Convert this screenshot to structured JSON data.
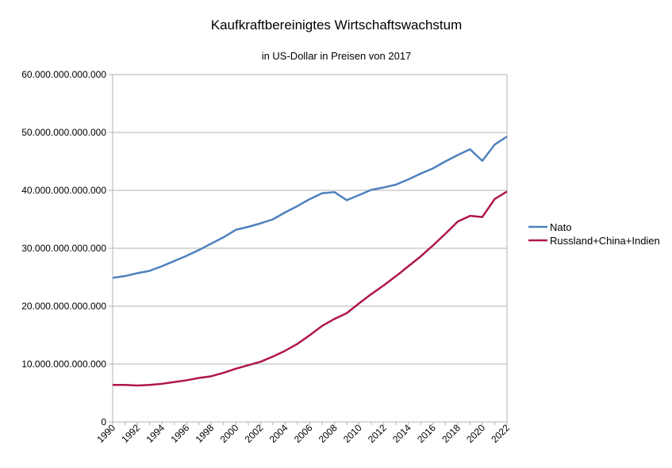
{
  "chart_data": {
    "type": "line",
    "title": "Kaufkraftbereinigtes Wirtschaftswachstum",
    "subtitle": "in US-Dollar in Preisen von 2017",
    "xlabel": "",
    "ylabel": "",
    "xlim": [
      1990,
      2022
    ],
    "ylim": [
      0,
      60000000000000
    ],
    "grid": "horizontal",
    "legend_position": "right",
    "x_tick_labels": [
      "1990",
      "1992",
      "1994",
      "1996",
      "1998",
      "2000",
      "2002",
      "2004",
      "2006",
      "2008",
      "2010",
      "2012",
      "2014",
      "2016",
      "2018",
      "2020",
      "2022"
    ],
    "y_tick_labels": [
      "0",
      "10.000.000.000.000",
      "20.000.000.000.000",
      "30.000.000.000.000",
      "40.000.000.000.000",
      "50.000.000.000.000",
      "60.000.000.000.000"
    ],
    "x": [
      1990,
      1991,
      1992,
      1993,
      1994,
      1995,
      1996,
      1997,
      1998,
      1999,
      2000,
      2001,
      2002,
      2003,
      2004,
      2005,
      2006,
      2007,
      2008,
      2009,
      2010,
      2011,
      2012,
      2013,
      2014,
      2015,
      2016,
      2017,
      2018,
      2019,
      2020,
      2021,
      2022
    ],
    "series": [
      {
        "name": "Nato",
        "color": "#4f81bd",
        "values": [
          24900000000000,
          25200000000000,
          25700000000000,
          26100000000000,
          26900000000000,
          27800000000000,
          28700000000000,
          29700000000000,
          30800000000000,
          31900000000000,
          33200000000000,
          33700000000000,
          34300000000000,
          35000000000000,
          36200000000000,
          37300000000000,
          38500000000000,
          39500000000000,
          39700000000000,
          38300000000000,
          39200000000000,
          40100000000000,
          40500000000000,
          41000000000000,
          41900000000000,
          42900000000000,
          43800000000000,
          45000000000000,
          46100000000000,
          47100000000000,
          45100000000000,
          47900000000000,
          49300000000000
        ]
      },
      {
        "name": "Russland+China+Indien",
        "color": "#b0154f",
        "values": [
          6400000000000,
          6400000000000,
          6300000000000,
          6400000000000,
          6600000000000,
          6900000000000,
          7200000000000,
          7600000000000,
          7900000000000,
          8500000000000,
          9200000000000,
          9800000000000,
          10400000000000,
          11300000000000,
          12300000000000,
          13500000000000,
          15000000000000,
          16600000000000,
          17800000000000,
          18800000000000,
          20500000000000,
          22100000000000,
          23600000000000,
          25200000000000,
          26900000000000,
          28600000000000,
          30500000000000,
          32500000000000,
          34600000000000,
          35600000000000,
          35400000000000,
          38500000000000,
          39800000000000
        ]
      }
    ]
  }
}
